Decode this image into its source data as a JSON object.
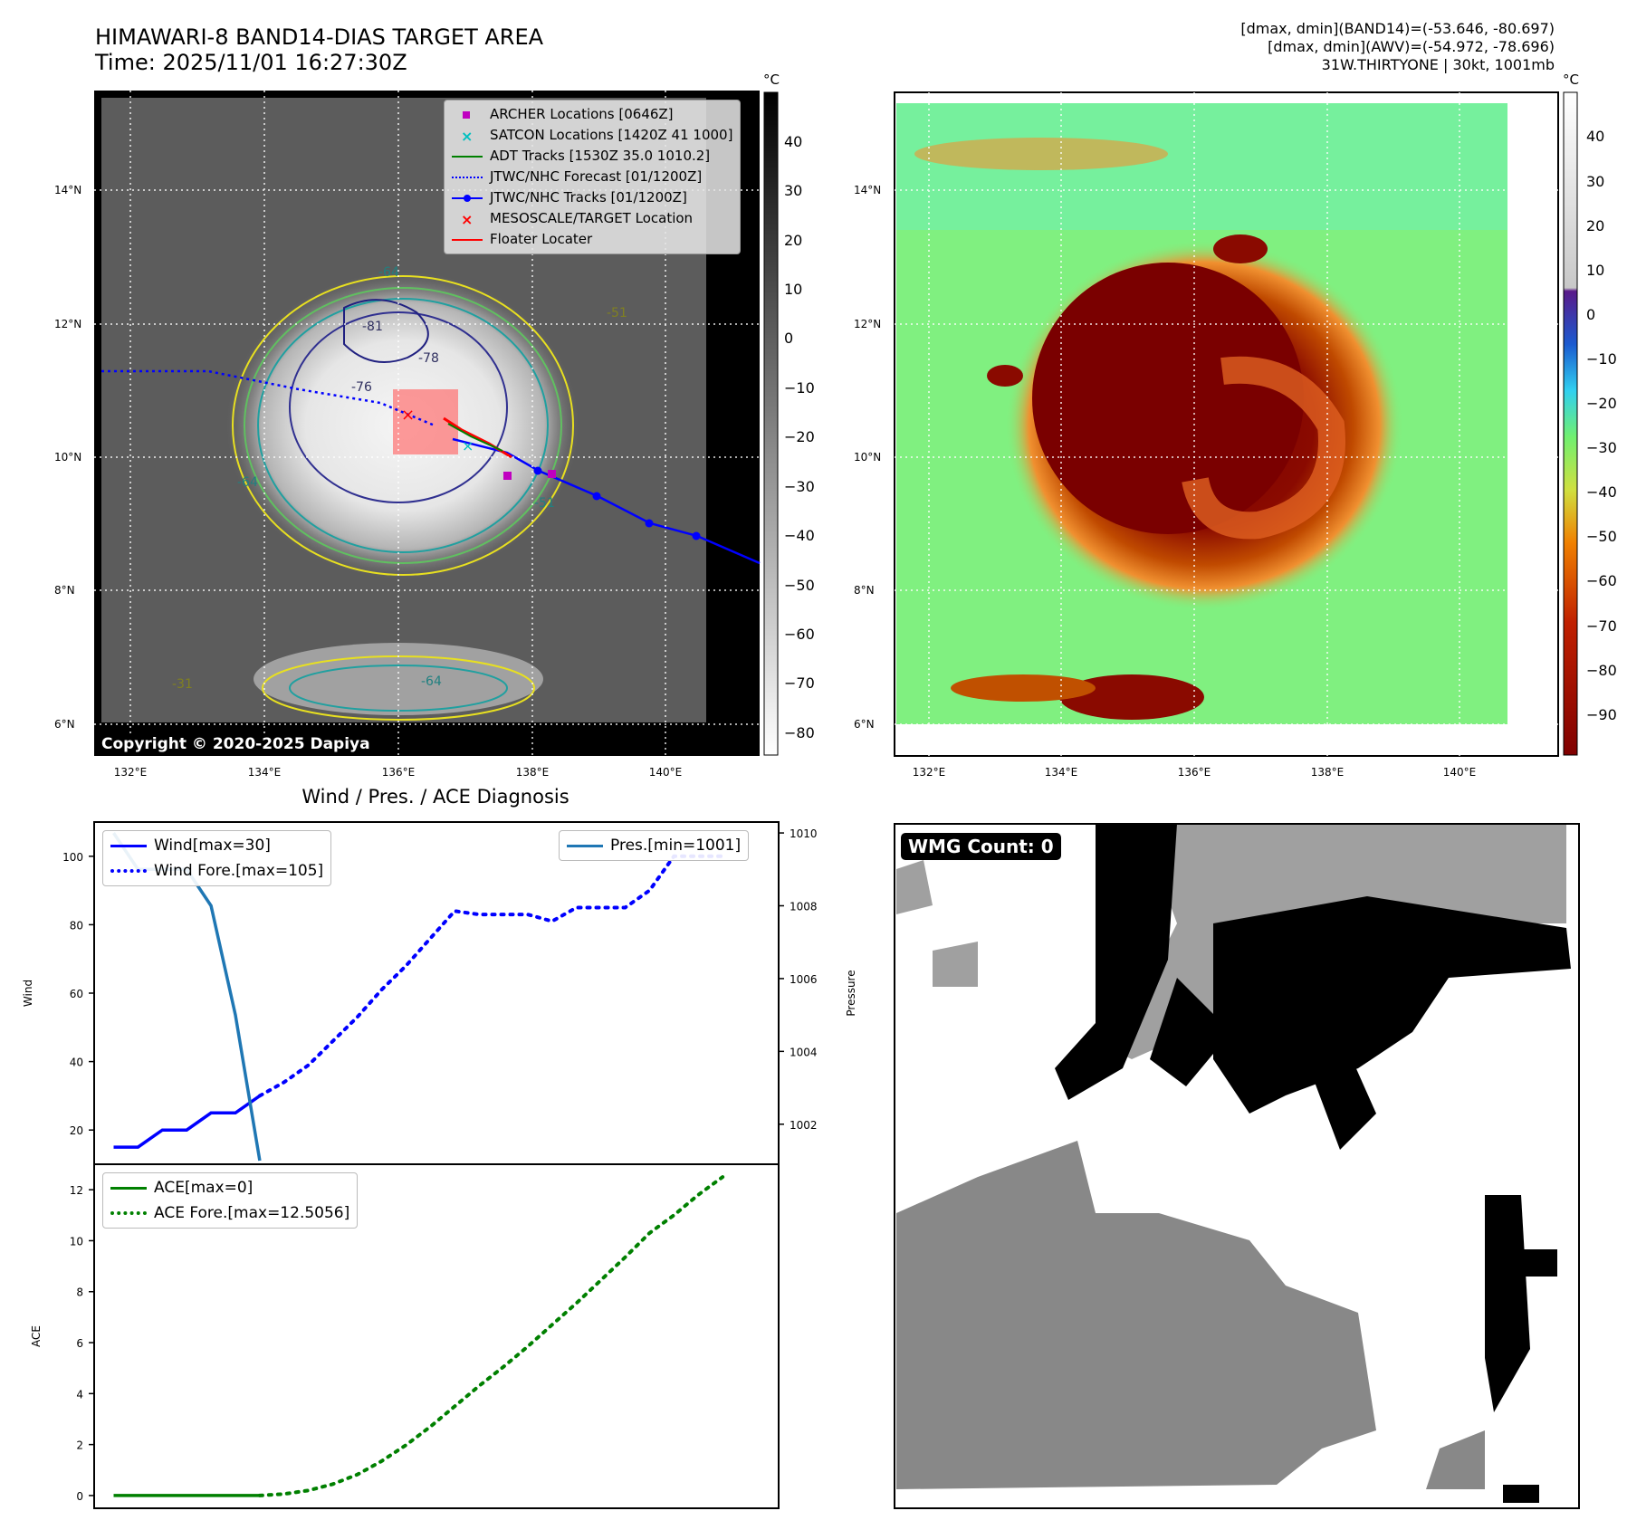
{
  "header": {
    "title_line1": "HIMAWARI-8 BAND14-DIAS TARGET AREA",
    "title_line2": "Time: 2025/11/01 16:27:30Z",
    "right_line1": "[dmax, dmin](BAND14)=(-53.646, -80.697)",
    "right_line2": "[dmax, dmin](AWV)=(-54.972, -78.696)",
    "right_line3": "31W.THIRTYONE | 30kt, 1001mb"
  },
  "ir_panel": {
    "copyright": "Copyright © 2020-2025 Dapiya",
    "lat_ticks": [
      "14°N",
      "12°N",
      "10°N",
      "8°N",
      "6°N"
    ],
    "lon_ticks": [
      "132°E",
      "134°E",
      "136°E",
      "138°E",
      "140°E"
    ],
    "colorbar_unit": "°C",
    "colorbar_ticks": [
      "40",
      "30",
      "20",
      "10",
      "0",
      "−10",
      "−20",
      "−30",
      "−40",
      "−50",
      "−60",
      "−70",
      "−80"
    ],
    "contour_labels": [
      "-81",
      "-76",
      "-78",
      "-64",
      "-64",
      "-64",
      "-51",
      "-31",
      "-51"
    ],
    "legend": [
      {
        "label": "ARCHER Locations [0646Z]",
        "icon": "square-marker",
        "color": "#c000c0"
      },
      {
        "label": "SATCON Locations [1420Z 41 1000]",
        "icon": "x-marker",
        "color": "#00c0c0"
      },
      {
        "label": "ADT Tracks [1530Z 35.0 1010.2]",
        "icon": "line",
        "color": "#008000"
      },
      {
        "label": "JTWC/NHC Forecast [01/1200Z]",
        "icon": "dotted-line",
        "color": "#0000ff"
      },
      {
        "label": "JTWC/NHC Tracks [01/1200Z]",
        "icon": "line-dot",
        "color": "#0000ff"
      },
      {
        "label": "MESOSCALE/TARGET Location",
        "icon": "x-marker",
        "color": "#ff0000"
      },
      {
        "label": "Floater Locater",
        "icon": "line",
        "color": "#ff0000"
      }
    ]
  },
  "awv_panel": {
    "lat_ticks": [
      "14°N",
      "12°N",
      "10°N",
      "8°N",
      "6°N"
    ],
    "lon_ticks": [
      "132°E",
      "134°E",
      "136°E",
      "138°E",
      "140°E"
    ],
    "colorbar_unit": "°C",
    "colorbar_ticks": [
      "40",
      "30",
      "20",
      "10",
      "0",
      "−10",
      "−20",
      "−30",
      "−40",
      "−50",
      "−60",
      "−70",
      "−80",
      "−90"
    ]
  },
  "chart_data": [
    {
      "type": "line",
      "title": "Wind / Pres. / ACE Diagnosis",
      "ylabel": "Wind",
      "ylabel_right": "Pressure",
      "ylim": [
        10,
        110
      ],
      "ylim_right": [
        1000.9,
        1010.3
      ],
      "yticks": [
        20,
        40,
        60,
        80,
        100
      ],
      "yticks_right": [
        1002,
        1004,
        1006,
        1008,
        1010
      ],
      "series": [
        {
          "name": "Wind[max=30]",
          "color": "#0000ff",
          "style": "solid",
          "axis": "left",
          "x": [
            0,
            1,
            2,
            3,
            4,
            5,
            6
          ],
          "values": [
            15,
            15,
            20,
            20,
            25,
            25,
            30
          ]
        },
        {
          "name": "Wind Fore.[max=105]",
          "color": "#0000ff",
          "style": "dotted",
          "axis": "left",
          "x": [
            6,
            7,
            8,
            9,
            10,
            11,
            12,
            13,
            14,
            15,
            16,
            17,
            18,
            19,
            20,
            21,
            22,
            23,
            24,
            25
          ],
          "values": [
            30,
            34,
            39,
            46,
            53,
            61,
            68,
            76,
            84,
            83,
            83,
            83,
            81,
            85,
            85,
            85,
            90,
            100,
            100,
            100
          ]
        },
        {
          "name": "Pres.[min=1001]",
          "color": "#1f77b4",
          "style": "solid",
          "axis": "right",
          "x": [
            0,
            1,
            2,
            3,
            4,
            5,
            6
          ],
          "values": [
            1010,
            1009,
            1009,
            1009,
            1008,
            1005,
            1001
          ]
        }
      ]
    },
    {
      "type": "line",
      "ylabel": "ACE",
      "ylim": [
        -0.5,
        13
      ],
      "yticks": [
        0,
        2,
        4,
        6,
        8,
        10,
        12
      ],
      "series": [
        {
          "name": "ACE[max=0]",
          "color": "#008000",
          "style": "solid",
          "x": [
            0,
            1,
            2,
            3,
            4,
            5,
            6
          ],
          "values": [
            0,
            0,
            0,
            0,
            0,
            0,
            0
          ]
        },
        {
          "name": "ACE Fore.[max=12.5056]",
          "color": "#008000",
          "style": "dotted",
          "x": [
            6,
            7,
            8,
            9,
            10,
            11,
            12,
            13,
            14,
            15,
            16,
            17,
            18,
            19,
            20,
            21,
            22,
            23,
            24,
            25
          ],
          "values": [
            0,
            0.06,
            0.2,
            0.45,
            0.82,
            1.35,
            1.98,
            2.7,
            3.5,
            4.3,
            5.05,
            5.85,
            6.7,
            7.55,
            8.45,
            9.35,
            10.3,
            11.0,
            11.8,
            12.5
          ]
        }
      ]
    }
  ],
  "wmg_panel": {
    "count_label": "WMG Count: 0"
  }
}
